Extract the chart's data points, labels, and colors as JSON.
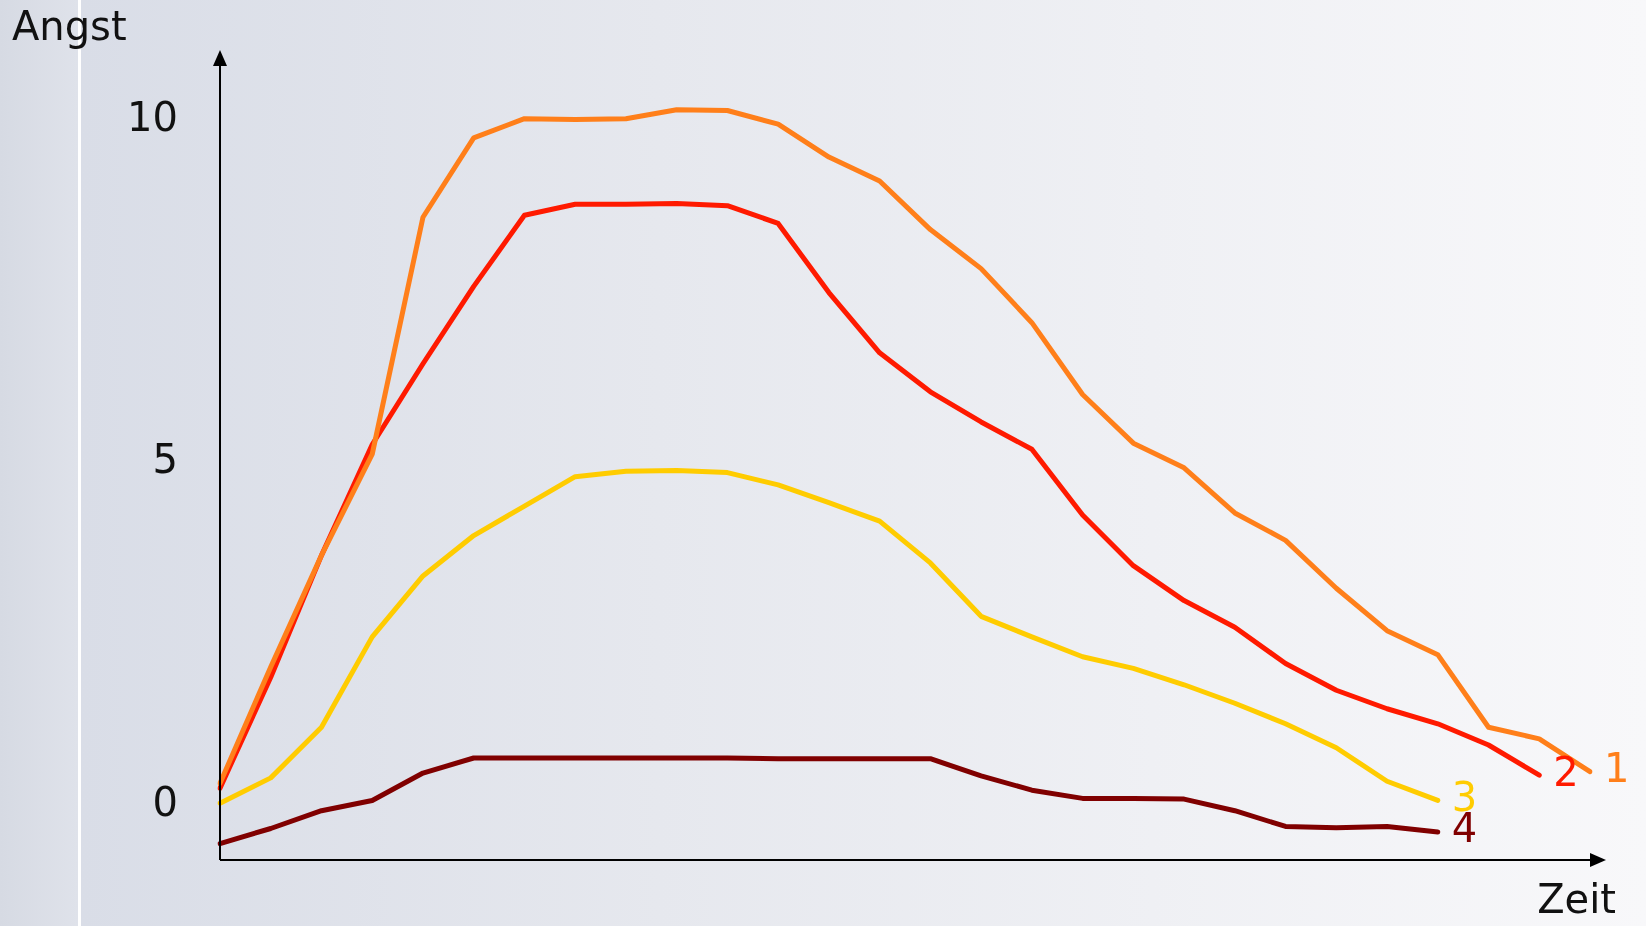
{
  "chart_data": {
    "type": "line",
    "xlabel": "Zeit",
    "ylabel": "Angst",
    "ylim": [
      -0.8,
      10.8
    ],
    "yticks": [
      0,
      5,
      10
    ],
    "grid": false,
    "legend": false,
    "marker": "none",
    "line_style": "solid",
    "categories": [
      null,
      null,
      null,
      null,
      null,
      null,
      null,
      null,
      null,
      null,
      null,
      null,
      null,
      null,
      null,
      null,
      null,
      null,
      null,
      null,
      null,
      null,
      null,
      null,
      null,
      null,
      null,
      null
    ],
    "series": [
      {
        "name": "1",
        "color": "#ff7f1a",
        "values": [
          0.32,
          2.02,
          3.65,
          5.13,
          8.59,
          9.75,
          10.03,
          10.02,
          10.03,
          10.16,
          10.15,
          9.95,
          9.47,
          9.12,
          8.41,
          7.84,
          7.05,
          6.0,
          5.29,
          4.93,
          4.27,
          3.87,
          3.17,
          2.55,
          2.2,
          1.14,
          0.97,
          0.49
        ]
      },
      {
        "name": "2",
        "color": "#ff1a00",
        "values": [
          0.25,
          1.87,
          3.65,
          5.27,
          6.45,
          7.58,
          8.62,
          8.78,
          8.78,
          8.79,
          8.76,
          8.5,
          7.49,
          6.61,
          6.04,
          5.6,
          5.2,
          4.24,
          3.5,
          2.99,
          2.6,
          2.07,
          1.68,
          1.41,
          1.19,
          0.88,
          0.44,
          null
        ]
      },
      {
        "name": "3",
        "color": "#ffcc00",
        "values": [
          0.03,
          0.4,
          1.14,
          2.46,
          3.35,
          3.94,
          4.37,
          4.8,
          4.88,
          4.89,
          4.86,
          4.68,
          4.42,
          4.15,
          3.54,
          2.76,
          2.46,
          2.17,
          2.0,
          1.76,
          1.49,
          1.19,
          0.84,
          0.35,
          0.07,
          null,
          null,
          null
        ]
      },
      {
        "name": "4",
        "color": "#800000",
        "values": [
          -0.56,
          -0.34,
          -0.08,
          0.07,
          0.47,
          0.69,
          0.69,
          0.69,
          0.69,
          0.69,
          0.69,
          0.68,
          0.68,
          0.68,
          0.68,
          0.43,
          0.22,
          0.1,
          0.1,
          0.09,
          -0.08,
          -0.31,
          -0.33,
          -0.31,
          -0.39,
          null,
          null,
          null
        ]
      }
    ]
  }
}
